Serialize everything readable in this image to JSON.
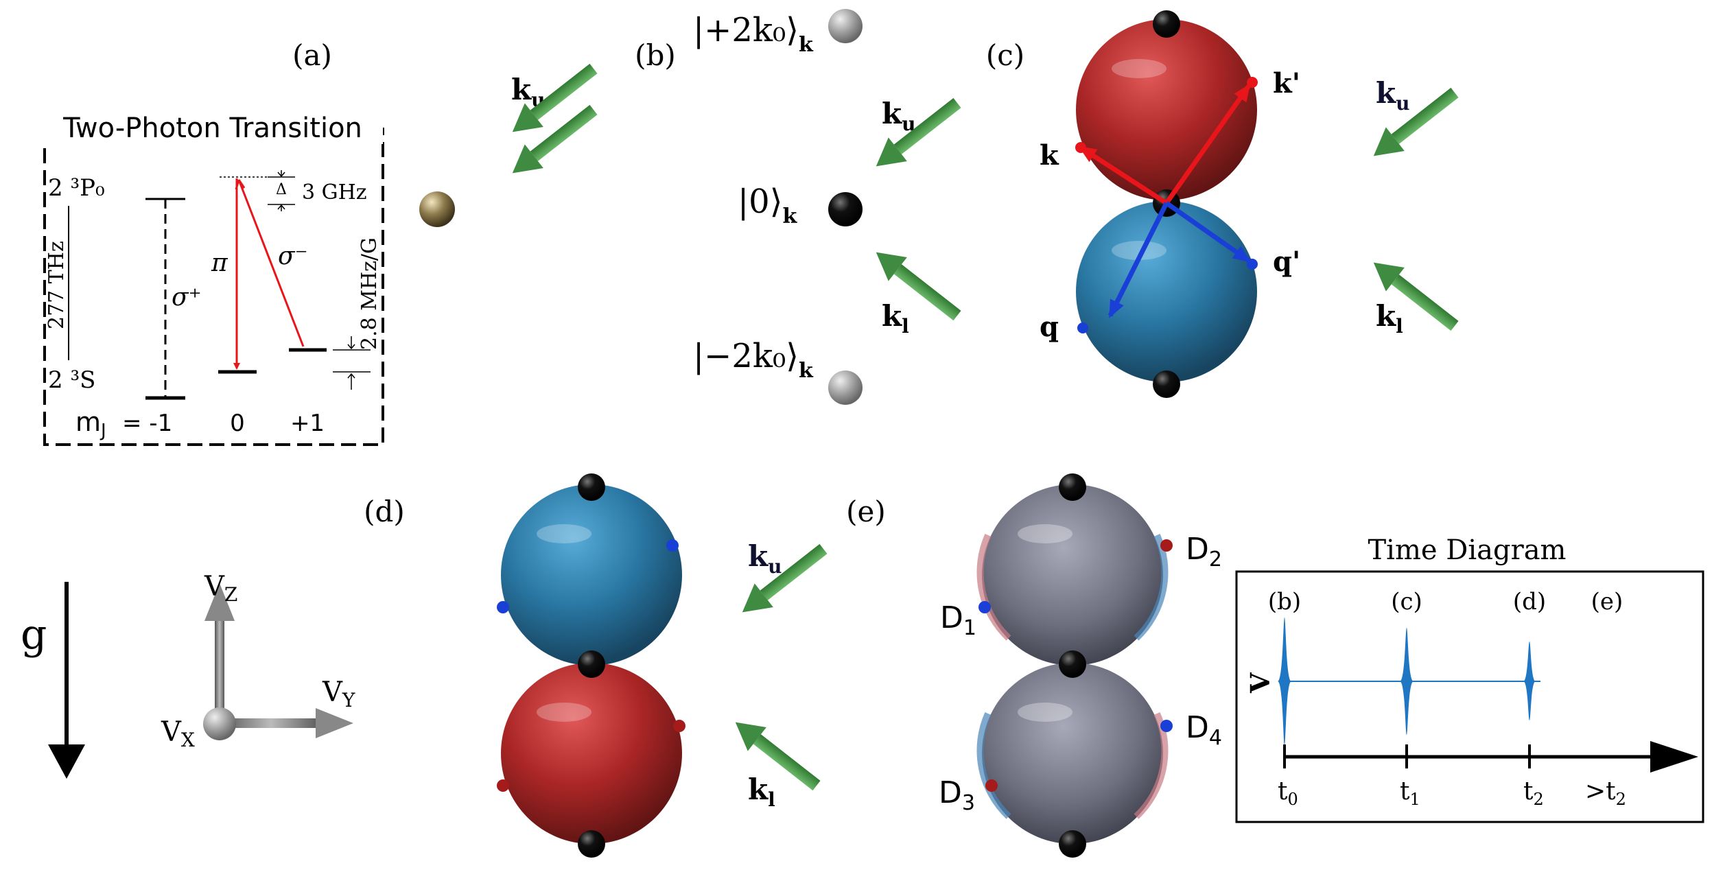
{
  "colors": {
    "red_arrow": "#e8151b",
    "blue_arrow": "#1a3fd6",
    "green_arrow": "#4e9a4c",
    "red_sphere": "#a01818",
    "blue_sphere": "#1f6e9e",
    "gray_sphere": "#6b6d7e",
    "pulse_blue": "#1f77c4"
  },
  "panel_a": {
    "label": "(a)",
    "title": "Two-Photon Transition",
    "level_p": "2 ³P₀",
    "level_s": "2 ³S",
    "freq_label": "277 THz",
    "detuning": "Δ",
    "detuning_value": "3 GHz",
    "zeeman": "2.8 MHz/G",
    "sigma_plus": "σ⁺",
    "pi": "π",
    "sigma_minus": "σ⁻",
    "mj_label": "m",
    "mj_sub": "J",
    "mj_values": "= -1",
    "mj_zero": "0",
    "mj_plus": "+1",
    "k_u": "k",
    "k_u_sub": "u"
  },
  "panel_b": {
    "label": "(b)",
    "state_top": "|+2k₀⟩",
    "state_mid": "|0⟩",
    "state_bot": "|−2k₀⟩",
    "state_sub": "k",
    "k_u": "k",
    "k_u_sub": "u",
    "k_l": "k",
    "k_l_sub": "l"
  },
  "panel_c": {
    "label": "(c)",
    "k": "k",
    "k_prime": "k'",
    "q": "q",
    "q_prime": "q'",
    "k_u": "k",
    "k_u_sub": "u",
    "k_l": "k",
    "k_l_sub": "l"
  },
  "panel_d": {
    "label": "(d)",
    "g": "g",
    "vz": "V",
    "vz_sub": "Z",
    "vy": "V",
    "vy_sub": "Y",
    "vx": "V",
    "vx_sub": "X",
    "k_u": "k",
    "k_u_sub": "u",
    "k_l": "k",
    "k_l_sub": "l"
  },
  "panel_e": {
    "label": "(e)",
    "d1": "D",
    "d1_sub": "1",
    "d2": "D",
    "d2_sub": "2",
    "d3": "D",
    "d3_sub": "3",
    "d4": "D",
    "d4_sub": "4"
  },
  "time_diagram": {
    "title": "Time Diagram",
    "y_label": "V",
    "phases": [
      "(b)",
      "(c)",
      "(d)",
      "(e)"
    ],
    "ticks": [
      "t",
      "t",
      "t",
      ">t"
    ],
    "tick_subs": [
      "0",
      "1",
      "2",
      "2"
    ]
  }
}
